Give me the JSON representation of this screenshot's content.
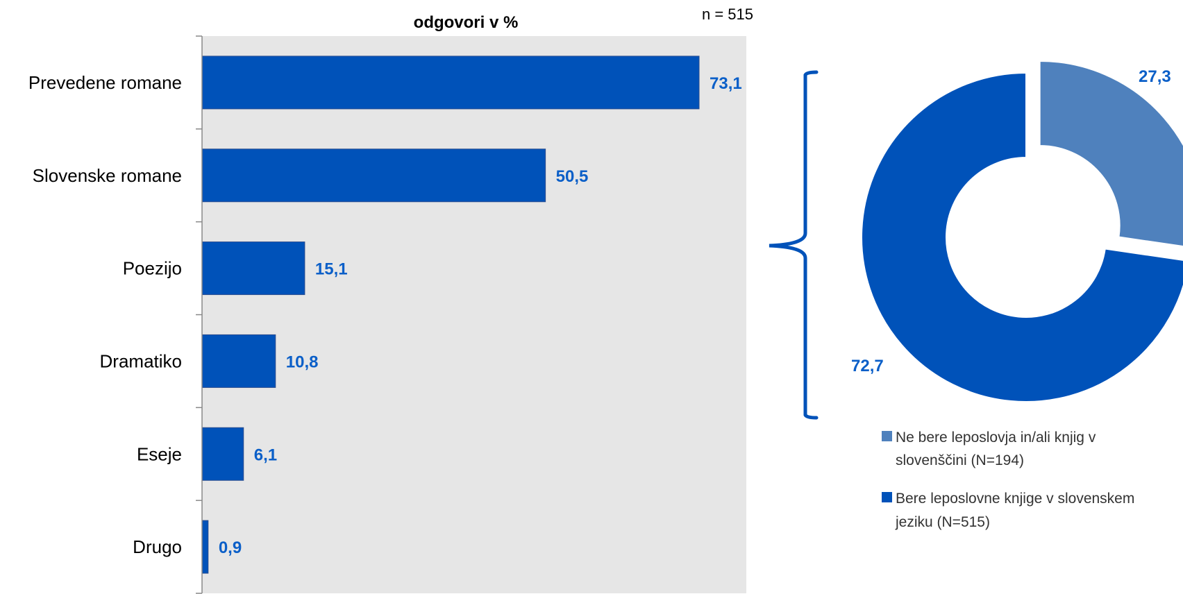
{
  "chart_data": [
    {
      "type": "bar",
      "orientation": "horizontal",
      "title": "odgovori v %",
      "note": "n = 515",
      "categories": [
        "Prevedene romane",
        "Slovenske romane",
        "Poezijo",
        "Dramatiko",
        "Eseje",
        "Drugo"
      ],
      "values": [
        73.1,
        50.5,
        15.1,
        10.8,
        6.1,
        0.9
      ],
      "value_labels": [
        "73,1",
        "50,5",
        "15,1",
        "10,8",
        "6,1",
        "0,9"
      ],
      "xlim": [
        0,
        80
      ],
      "grid": false,
      "colors": {
        "bar": "#0052B9",
        "plot_background": "#E6E6E6",
        "value_label": "#0B5FC8"
      }
    },
    {
      "type": "pie",
      "style": "donut",
      "slices": [
        {
          "label": "Ne bere leposlovja in/ali knjig v slovenščini (N=194)",
          "legend_lines": [
            "Ne bere leposlovja in/ali knjig v",
            "slovenščini (N=194)"
          ],
          "value": 27.3,
          "value_label": "27,3",
          "color": "#4F81BD"
        },
        {
          "label": "Bere leposlovne knjige v slovenskem jeziku (N=515)",
          "legend_lines": [
            "Bere leposlovne knjige v slovenskem",
            "jeziku (N=515)"
          ],
          "value": 72.7,
          "value_label": "72,7",
          "color": "#0052B9"
        }
      ],
      "legend_position": "bottom-right",
      "colors": {
        "bracket": "#0052B9"
      }
    }
  ]
}
